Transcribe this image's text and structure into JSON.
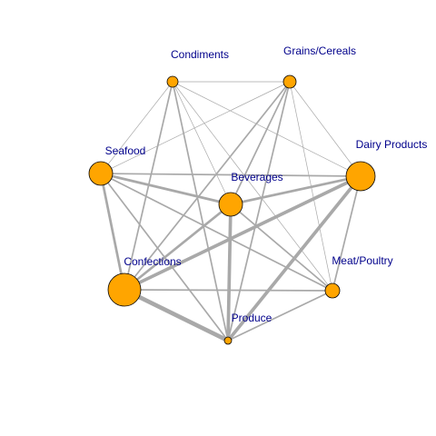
{
  "colors": {
    "node_fill": "#FFA500",
    "node_stroke": "#000000",
    "edge": "#A9A9A9",
    "label": "#00008B",
    "background": "#FFFFFF"
  },
  "nodes": [
    {
      "id": "condiments",
      "label": "Condiments"
    },
    {
      "id": "grains",
      "label": "Grains/Cereals"
    },
    {
      "id": "seafood",
      "label": "Seafood"
    },
    {
      "id": "dairy",
      "label": "Dairy Products"
    },
    {
      "id": "beverages",
      "label": "Beverages"
    },
    {
      "id": "confections",
      "label": "Confections"
    },
    {
      "id": "meat",
      "label": "Meat/Poultry"
    },
    {
      "id": "produce",
      "label": "Produce"
    }
  ],
  "edges": [
    {
      "source": "condiments",
      "target": "grains",
      "weight": 1
    },
    {
      "source": "condiments",
      "target": "seafood",
      "weight": 1
    },
    {
      "source": "condiments",
      "target": "dairy",
      "weight": 1
    },
    {
      "source": "condiments",
      "target": "beverages",
      "weight": 1
    },
    {
      "source": "condiments",
      "target": "confections",
      "weight": 2
    },
    {
      "source": "condiments",
      "target": "meat",
      "weight": 1
    },
    {
      "source": "condiments",
      "target": "produce",
      "weight": 2
    },
    {
      "source": "grains",
      "target": "seafood",
      "weight": 1
    },
    {
      "source": "grains",
      "target": "dairy",
      "weight": 1
    },
    {
      "source": "grains",
      "target": "beverages",
      "weight": 2
    },
    {
      "source": "grains",
      "target": "confections",
      "weight": 2
    },
    {
      "source": "grains",
      "target": "meat",
      "weight": 1
    },
    {
      "source": "grains",
      "target": "produce",
      "weight": 2
    },
    {
      "source": "seafood",
      "target": "dairy",
      "weight": 2
    },
    {
      "source": "seafood",
      "target": "beverages",
      "weight": 3
    },
    {
      "source": "seafood",
      "target": "confections",
      "weight": 3
    },
    {
      "source": "seafood",
      "target": "meat",
      "weight": 2
    },
    {
      "source": "seafood",
      "target": "produce",
      "weight": 2
    },
    {
      "source": "dairy",
      "target": "beverages",
      "weight": 3
    },
    {
      "source": "dairy",
      "target": "confections",
      "weight": 4
    },
    {
      "source": "dairy",
      "target": "meat",
      "weight": 2
    },
    {
      "source": "dairy",
      "target": "produce",
      "weight": 4
    },
    {
      "source": "beverages",
      "target": "confections",
      "weight": 3
    },
    {
      "source": "beverages",
      "target": "meat",
      "weight": 2
    },
    {
      "source": "beverages",
      "target": "produce",
      "weight": 4
    },
    {
      "source": "confections",
      "target": "meat",
      "weight": 2
    },
    {
      "source": "confections",
      "target": "produce",
      "weight": 5
    },
    {
      "source": "meat",
      "target": "produce",
      "weight": 2
    }
  ]
}
